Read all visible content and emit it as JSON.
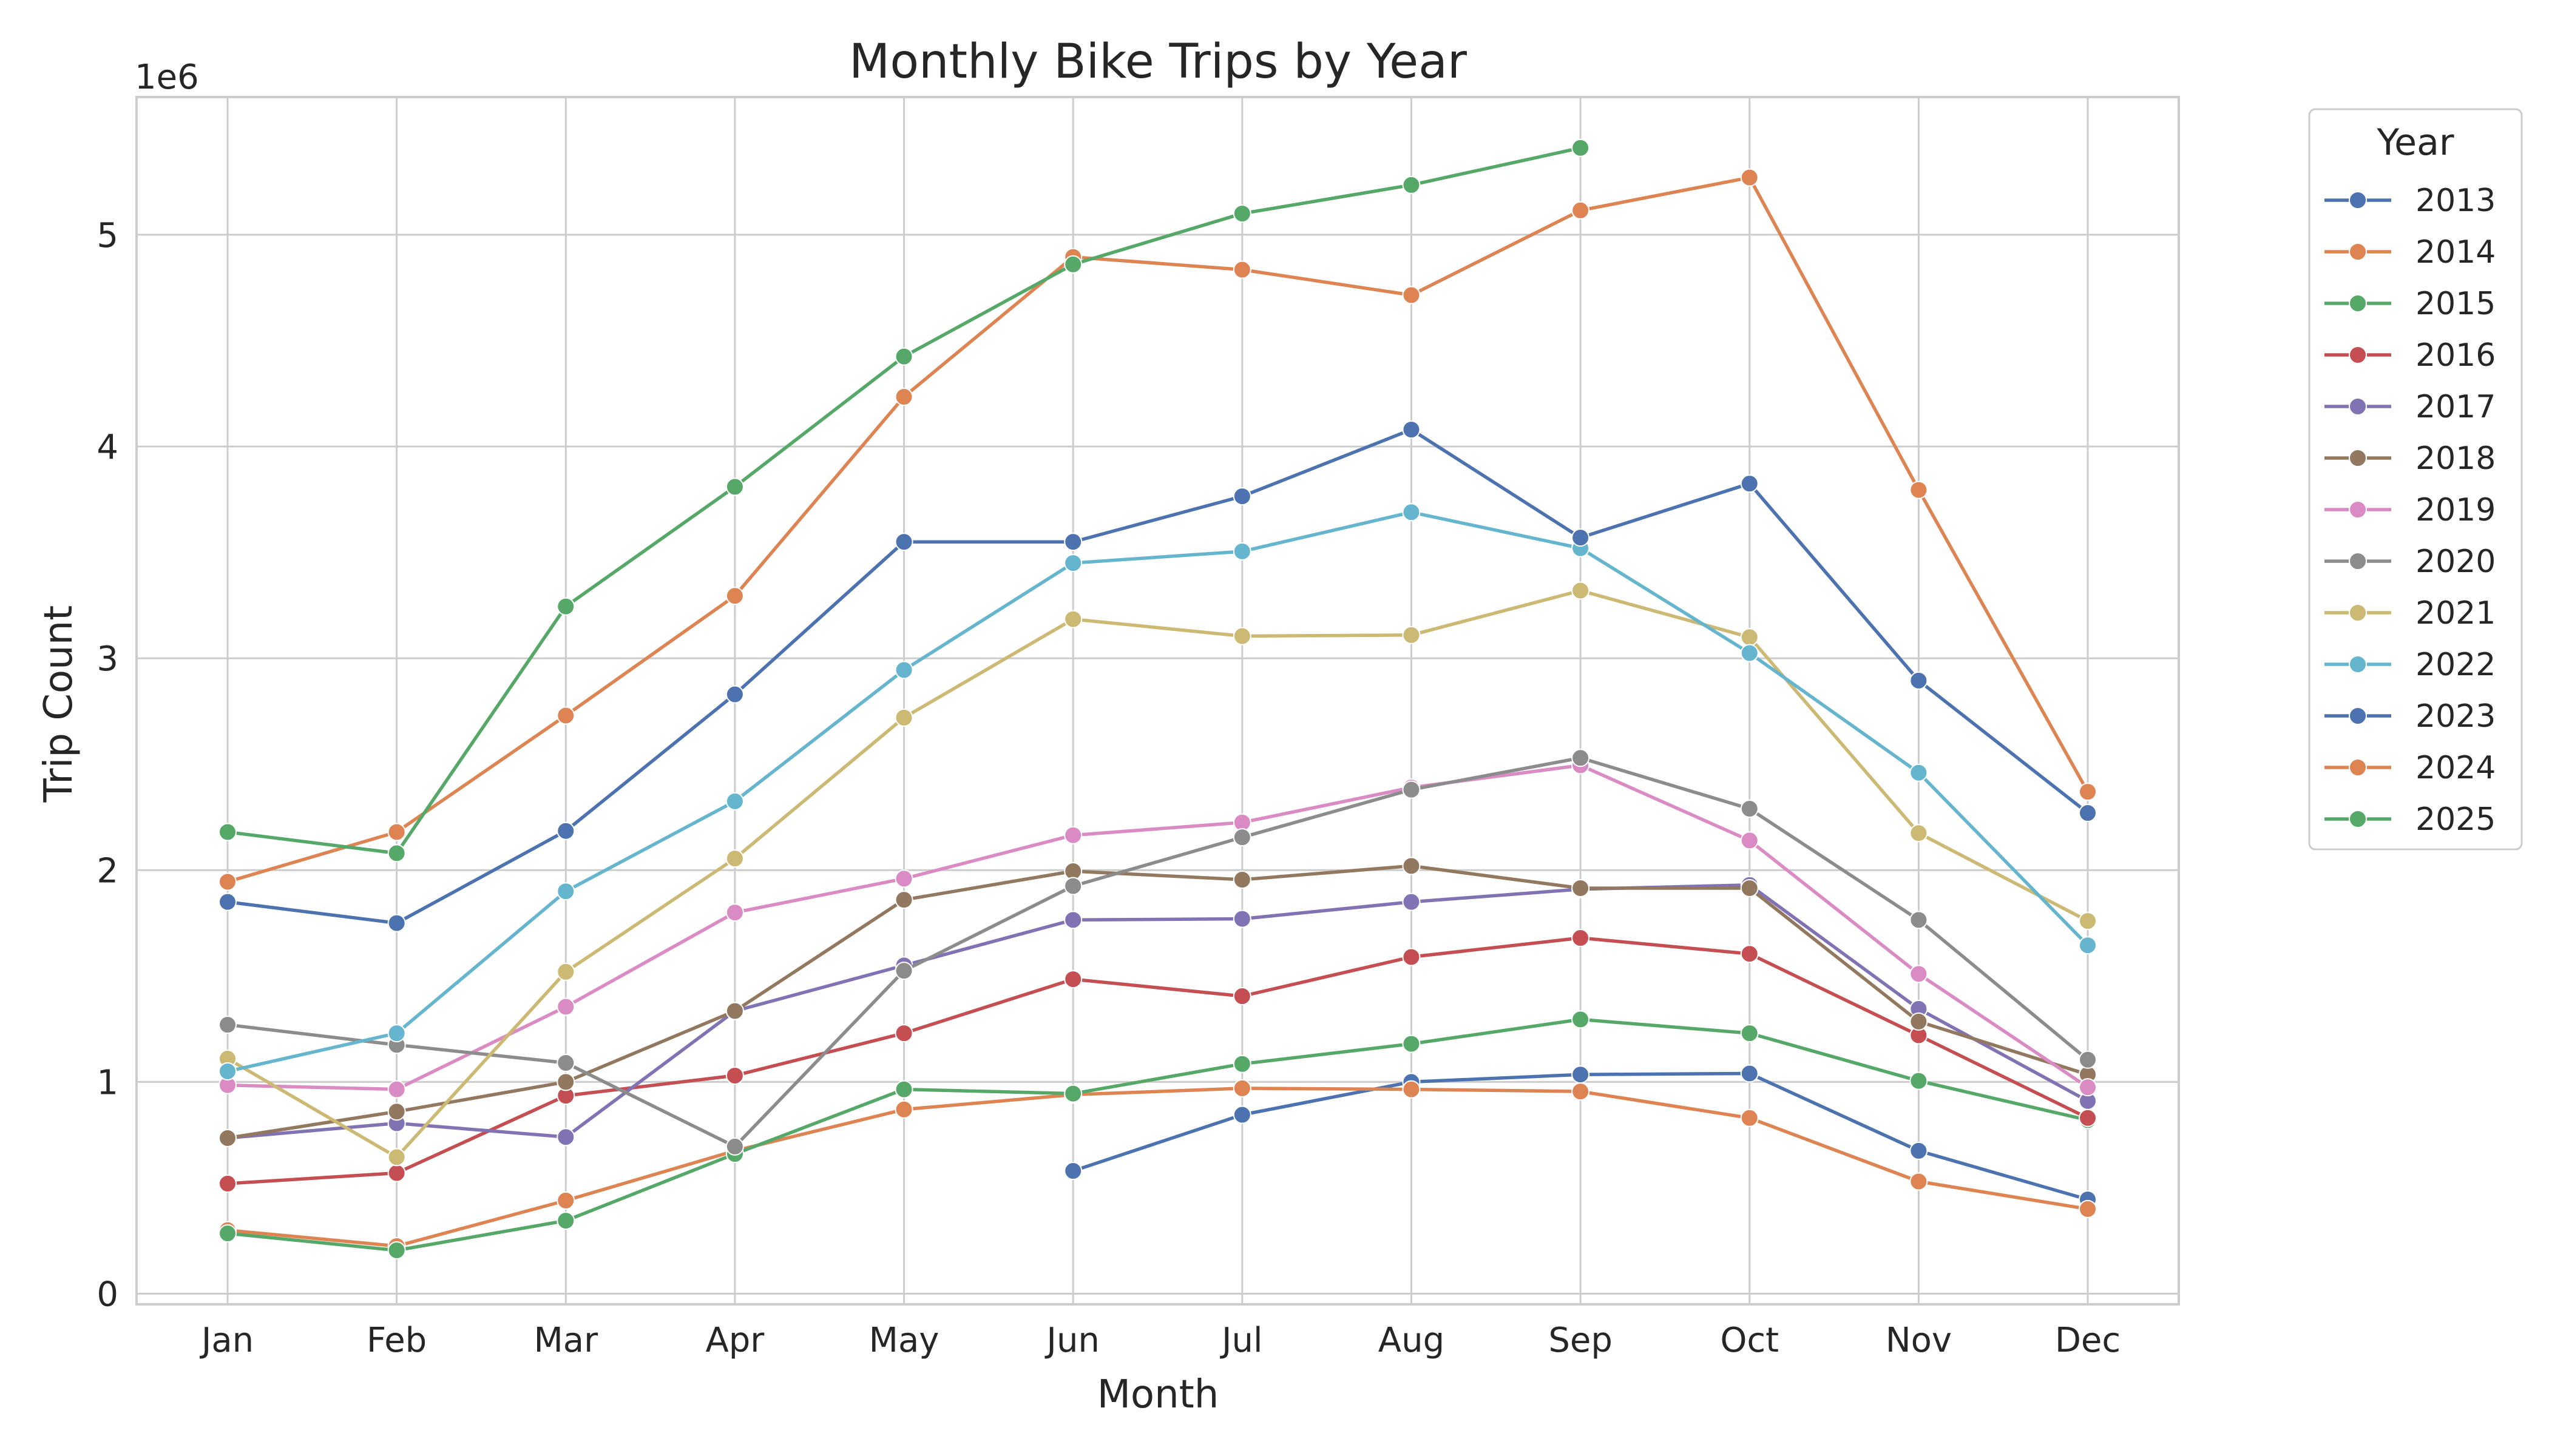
{
  "chart_data": {
    "type": "line",
    "title": "Monthly Bike Trips by Year",
    "xlabel": "Month",
    "ylabel": "Trip Count",
    "y_offset_label": "1e6",
    "y_multiplier": 1000000,
    "ylim": [
      -50000,
      5650000
    ],
    "yticks": [
      0,
      1000000,
      2000000,
      3000000,
      4000000,
      5000000
    ],
    "ytick_labels": [
      "0",
      "1",
      "2",
      "3",
      "4",
      "5"
    ],
    "grid": true,
    "legend_title": "Year",
    "legend_position": "outside-right",
    "categories": [
      "Jan",
      "Feb",
      "Mar",
      "Apr",
      "May",
      "Jun",
      "Jul",
      "Aug",
      "Sep",
      "Oct",
      "Nov",
      "Dec"
    ],
    "series": [
      {
        "name": "2013",
        "color": "#4c72b0",
        "values": [
          null,
          null,
          null,
          null,
          null,
          580000,
          845000,
          1000000,
          1035000,
          1040000,
          675000,
          445000
        ]
      },
      {
        "name": "2014",
        "color": "#dd8452",
        "values": [
          300000,
          225000,
          440000,
          675000,
          870000,
          940000,
          970000,
          965000,
          955000,
          830000,
          530000,
          400000
        ]
      },
      {
        "name": "2015",
        "color": "#55a868",
        "values": [
          285000,
          205000,
          345000,
          660000,
          965000,
          945000,
          1085000,
          1180000,
          1295000,
          1230000,
          1005000,
          820000
        ]
      },
      {
        "name": "2016",
        "color": "#c44e52",
        "values": [
          520000,
          570000,
          935000,
          1030000,
          1230000,
          1485000,
          1405000,
          1590000,
          1680000,
          1605000,
          1220000,
          830000
        ]
      },
      {
        "name": "2017",
        "color": "#8172b3",
        "values": [
          735000,
          805000,
          740000,
          1335000,
          1550000,
          1765000,
          1770000,
          1850000,
          1910000,
          1930000,
          1345000,
          910000
        ]
      },
      {
        "name": "2018",
        "color": "#937860",
        "values": [
          735000,
          860000,
          1000000,
          1335000,
          1860000,
          1995000,
          1955000,
          2020000,
          1915000,
          1915000,
          1285000,
          1035000
        ]
      },
      {
        "name": "2019",
        "color": "#da8bc3",
        "values": [
          985000,
          965000,
          1355000,
          1800000,
          1960000,
          2165000,
          2225000,
          2390000,
          2495000,
          2140000,
          1510000,
          975000
        ]
      },
      {
        "name": "2020",
        "color": "#8c8c8c",
        "values": [
          1270000,
          1175000,
          1090000,
          695000,
          1525000,
          1925000,
          2155000,
          2380000,
          2530000,
          2290000,
          1765000,
          1105000
        ]
      },
      {
        "name": "2021",
        "color": "#ccb974",
        "values": [
          1110000,
          645000,
          1520000,
          2055000,
          2720000,
          3185000,
          3105000,
          3110000,
          3320000,
          3100000,
          2175000,
          1760000
        ]
      },
      {
        "name": "2022",
        "color": "#64b5cd",
        "values": [
          1050000,
          1230000,
          1900000,
          2325000,
          2945000,
          3450000,
          3505000,
          3690000,
          3520000,
          3025000,
          2460000,
          1645000
        ]
      },
      {
        "name": "2023",
        "color": "#4c72b0",
        "values": [
          1850000,
          1750000,
          2185000,
          2830000,
          3550000,
          3550000,
          3765000,
          4080000,
          3570000,
          3825000,
          2895000,
          2270000
        ]
      },
      {
        "name": "2024",
        "color": "#dd8452",
        "values": [
          1945000,
          2180000,
          2730000,
          3295000,
          4235000,
          4895000,
          4835000,
          4715000,
          5115000,
          5270000,
          3795000,
          2370000
        ]
      },
      {
        "name": "2025",
        "color": "#55a868",
        "values": [
          2180000,
          2080000,
          3245000,
          3810000,
          4425000,
          4860000,
          5100000,
          5235000,
          5410000,
          null,
          null,
          null
        ]
      }
    ]
  }
}
